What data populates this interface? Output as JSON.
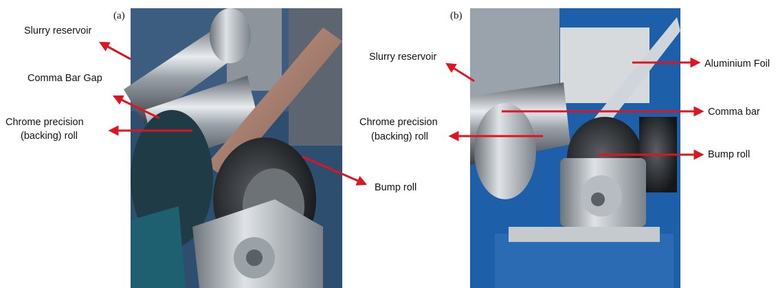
{
  "panels": [
    {
      "label": "(a)",
      "annotations": [
        {
          "lines": [
            "Slurry reservoir"
          ]
        },
        {
          "lines": [
            "Comma Bar Gap"
          ]
        },
        {
          "lines": [
            "Chrome precision",
            "(backing) roll"
          ]
        },
        {
          "lines": [
            "Bump roll"
          ]
        }
      ]
    },
    {
      "label": "(b)",
      "annotations": [
        {
          "lines": [
            "Slurry reservoir"
          ]
        },
        {
          "lines": [
            "Aluminium Foil"
          ]
        },
        {
          "lines": [
            "Comma bar"
          ]
        },
        {
          "lines": [
            "Chrome precision",
            "(backing) roll"
          ]
        },
        {
          "lines": [
            "Bump roll"
          ]
        }
      ]
    }
  ]
}
